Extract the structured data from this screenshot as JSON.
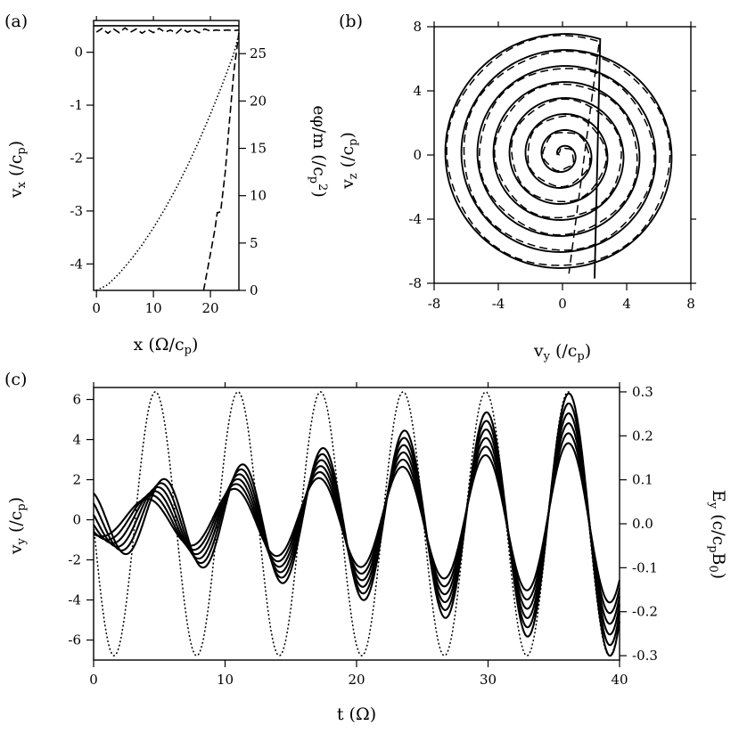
{
  "chart_data": [
    {
      "panel": "(a)",
      "type": "line",
      "xlabel": "x (Ω/c_p)",
      "ylabel": "v_x (/c_p)",
      "y2label": "eφ/m (/c_p²)",
      "xlim": [
        -0.5,
        25
      ],
      "ylim": [
        -4.5,
        0.6
      ],
      "y2lim": [
        0,
        28.5
      ],
      "xticks": [
        "0",
        "10",
        "20"
      ],
      "yticks": [
        "0",
        "-1",
        "-2",
        "-3",
        "-4"
      ],
      "y2ticks": [
        "0",
        "5",
        "10",
        "15",
        "20",
        "25"
      ],
      "series": [
        {
          "style": "solid",
          "axis": "left",
          "x": [
            -0.5,
            25
          ],
          "y": [
            0.5,
            0.5
          ]
        },
        {
          "style": "dashed",
          "axis": "left",
          "x": [
            0,
            1,
            2,
            3,
            4,
            5,
            6,
            7,
            8,
            9,
            10,
            11,
            12,
            13,
            14,
            15,
            16,
            17,
            18,
            19,
            20,
            21,
            22,
            23,
            24,
            25
          ],
          "y": [
            0.38,
            0.45,
            0.36,
            0.44,
            0.37,
            0.46,
            0.38,
            0.44,
            0.36,
            0.43,
            0.37,
            0.45,
            0.38,
            0.42,
            0.36,
            0.45,
            0.38,
            0.43,
            0.37,
            0.44,
            0.4,
            0.42,
            0.41,
            0.42,
            0.41,
            0.42
          ]
        },
        {
          "style": "dotted",
          "axis": "right",
          "x": [
            0,
            2,
            4,
            6,
            8,
            10,
            12,
            14,
            16,
            18,
            20,
            22,
            24,
            25
          ],
          "y": [
            0,
            0.6,
            1.8,
            3.2,
            4.8,
            6.6,
            8.6,
            10.8,
            13.2,
            15.8,
            18.6,
            21.6,
            24.8,
            27
          ]
        },
        {
          "style": "dashed",
          "axis": "right",
          "x": [
            18.8,
            19.5,
            20.2,
            20.8,
            21.2,
            21.8,
            22.6,
            23.3,
            24.1,
            25
          ],
          "y": [
            0,
            2.2,
            4.5,
            6.5,
            8.2,
            8.3,
            12.5,
            17.5,
            23,
            27.2
          ]
        }
      ]
    },
    {
      "panel": "(b)",
      "type": "line",
      "xlabel": "v_y (/c_p)",
      "ylabel": "v_z (/c_p)",
      "xlim": [
        -8,
        8
      ],
      "ylim": [
        -8,
        8
      ],
      "xticks": [
        "-8",
        "-4",
        "0",
        "4",
        "8"
      ],
      "yticks": [
        "8",
        "4",
        "0",
        "-4",
        "-8"
      ],
      "spiral": {
        "turns": 7.3,
        "r_start": 0.3,
        "r_end": 7.6,
        "solid_end": [
          2.0,
          -7.7
        ],
        "dashed_end": [
          0.4,
          -7.4
        ]
      }
    },
    {
      "panel": "(c)",
      "type": "line",
      "xlabel": "t (Ω)",
      "ylabel": "v_y (/c_p)",
      "y2label": "E_y (c/c_p B_0)",
      "xlim": [
        0,
        40
      ],
      "ylim": [
        -7,
        6.6
      ],
      "y2lim": [
        -0.31,
        0.31
      ],
      "xticks": [
        "0",
        "10",
        "20",
        "30",
        "40"
      ],
      "yticks": [
        "6",
        "4",
        "2",
        "0",
        "-2",
        "-4",
        "-6"
      ],
      "y2ticks": [
        "0.3",
        "0.2",
        "0.1",
        "0.0",
        "-0.1",
        "-0.2",
        "-0.3"
      ],
      "field": {
        "style": "dotted",
        "amplitude": 0.3,
        "period": 6.28,
        "peak_t": 4.7
      },
      "velocity_family": {
        "count": 6,
        "amplitude_start": [
          0.8,
          1.5
        ],
        "amplitude_end": [
          4.2,
          6.9
        ],
        "peaks_t": [
          4.7,
          11.0,
          17.3,
          23.6,
          29.8,
          36.1
        ]
      }
    }
  ]
}
